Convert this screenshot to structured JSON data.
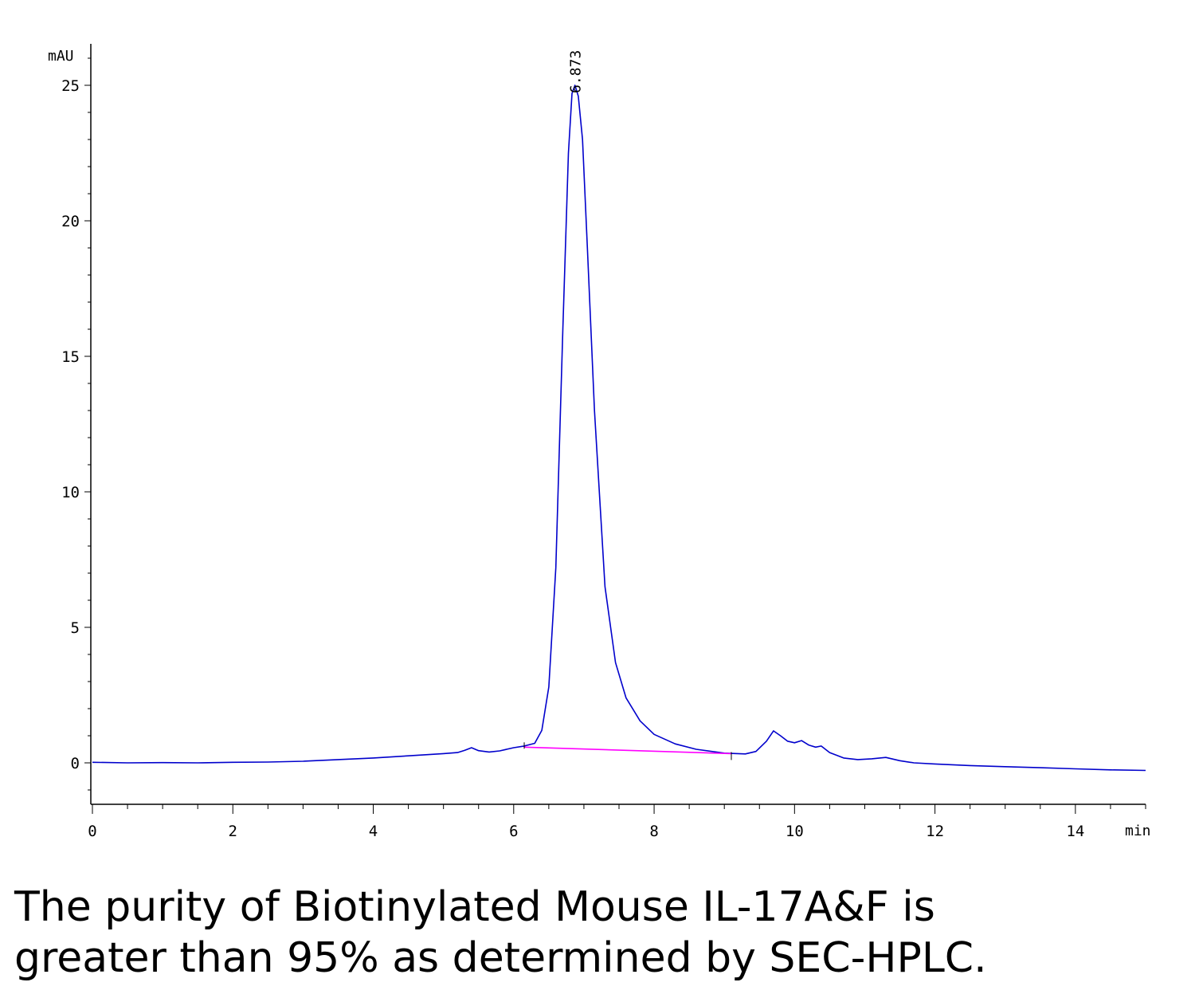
{
  "chart_data": {
    "type": "line",
    "y_unit": "mAU",
    "x_unit": "min",
    "xlim": [
      0,
      15
    ],
    "ylim": [
      -1.5,
      26.5
    ],
    "x_ticks": [
      0,
      2,
      4,
      6,
      8,
      10,
      12,
      14
    ],
    "y_ticks": [
      0,
      5,
      10,
      15,
      20,
      25
    ],
    "grid": false,
    "series": [
      {
        "color": "#0000cc",
        "points": [
          [
            0.0,
            0.02
          ],
          [
            0.5,
            0.0
          ],
          [
            1.0,
            0.01
          ],
          [
            1.5,
            0.0
          ],
          [
            2.0,
            0.02
          ],
          [
            2.5,
            0.03
          ],
          [
            3.0,
            0.06
          ],
          [
            3.5,
            0.12
          ],
          [
            4.0,
            0.18
          ],
          [
            4.5,
            0.26
          ],
          [
            5.0,
            0.34
          ],
          [
            5.2,
            0.38
          ],
          [
            5.3,
            0.46
          ],
          [
            5.4,
            0.56
          ],
          [
            5.5,
            0.45
          ],
          [
            5.65,
            0.4
          ],
          [
            5.8,
            0.44
          ],
          [
            6.0,
            0.56
          ],
          [
            6.15,
            0.62
          ],
          [
            6.3,
            0.72
          ],
          [
            6.4,
            1.2
          ],
          [
            6.5,
            2.8
          ],
          [
            6.6,
            7.2
          ],
          [
            6.7,
            16.0
          ],
          [
            6.78,
            22.5
          ],
          [
            6.83,
            24.7
          ],
          [
            6.873,
            25.0
          ],
          [
            6.92,
            24.6
          ],
          [
            6.98,
            23.0
          ],
          [
            7.05,
            19.0
          ],
          [
            7.15,
            13.0
          ],
          [
            7.3,
            6.5
          ],
          [
            7.45,
            3.7
          ],
          [
            7.6,
            2.4
          ],
          [
            7.8,
            1.55
          ],
          [
            8.0,
            1.05
          ],
          [
            8.3,
            0.7
          ],
          [
            8.6,
            0.5
          ],
          [
            9.0,
            0.36
          ],
          [
            9.3,
            0.33
          ],
          [
            9.45,
            0.42
          ],
          [
            9.6,
            0.8
          ],
          [
            9.7,
            1.18
          ],
          [
            9.8,
            1.0
          ],
          [
            9.9,
            0.8
          ],
          [
            10.0,
            0.74
          ],
          [
            10.1,
            0.82
          ],
          [
            10.2,
            0.66
          ],
          [
            10.3,
            0.58
          ],
          [
            10.38,
            0.62
          ],
          [
            10.5,
            0.38
          ],
          [
            10.7,
            0.18
          ],
          [
            10.9,
            0.12
          ],
          [
            11.1,
            0.15
          ],
          [
            11.3,
            0.2
          ],
          [
            11.5,
            0.08
          ],
          [
            11.7,
            0.0
          ],
          [
            12.0,
            -0.04
          ],
          [
            12.5,
            -0.1
          ],
          [
            13.0,
            -0.14
          ],
          [
            13.5,
            -0.18
          ],
          [
            14.0,
            -0.22
          ],
          [
            14.5,
            -0.26
          ],
          [
            15.0,
            -0.28
          ]
        ]
      }
    ],
    "baseline": {
      "color": "#ff00ff",
      "start": [
        6.15,
        0.58
      ],
      "end": [
        9.1,
        0.34
      ]
    },
    "peak_label": {
      "x": 6.873,
      "y": 25.0,
      "text": "6.873"
    }
  },
  "caption": {
    "line1": "The purity of Biotinylated Mouse IL-17A&F is",
    "line2": "greater than 95% as determined by SEC-HPLC."
  }
}
